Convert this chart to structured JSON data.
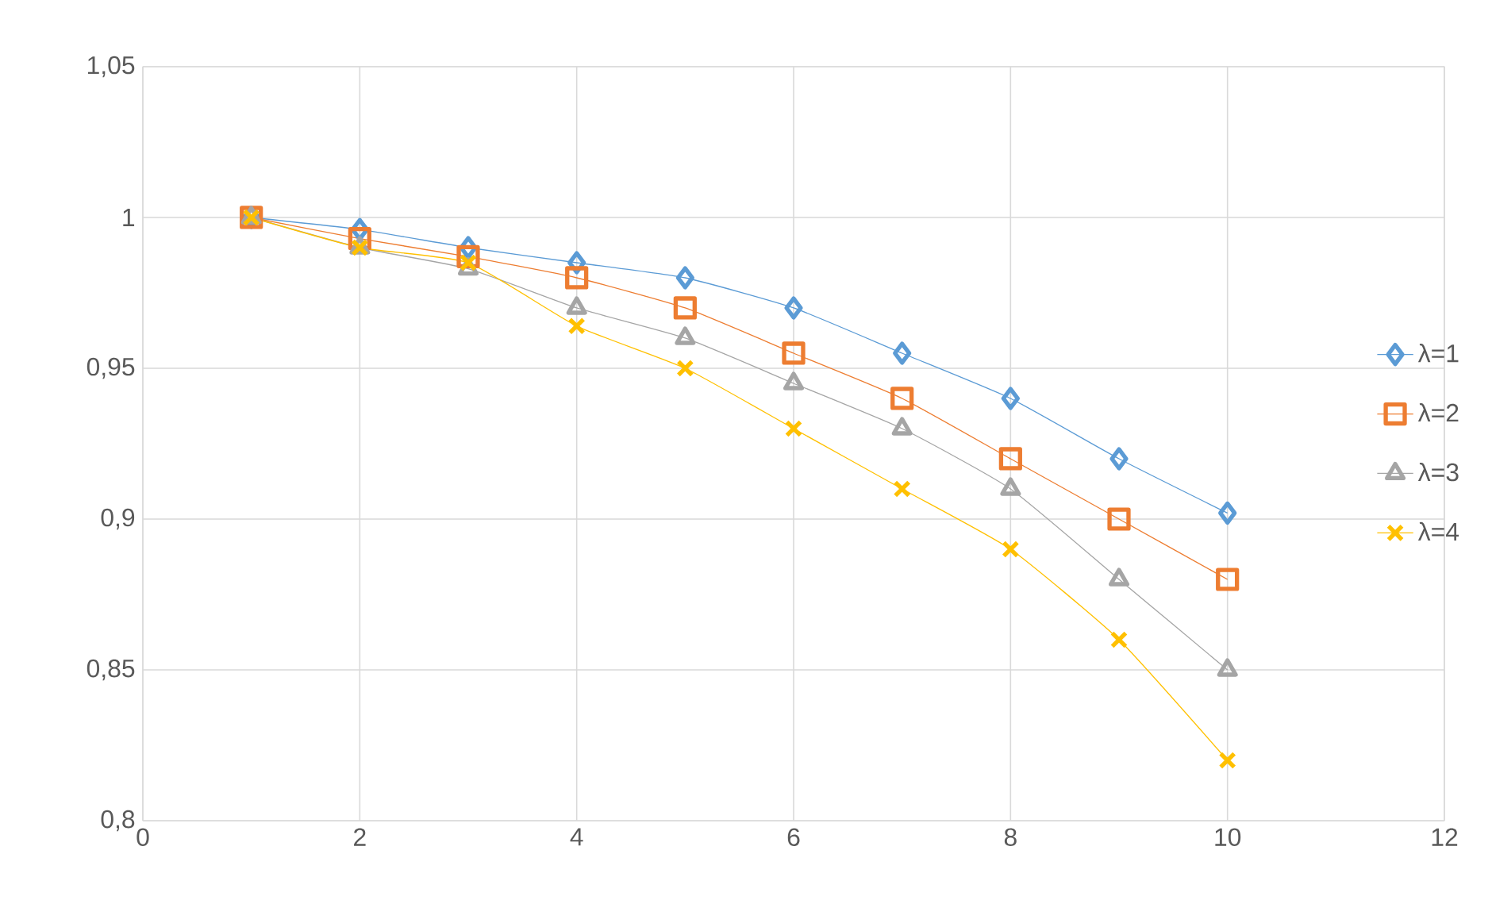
{
  "chart_data": {
    "type": "line",
    "x": [
      1,
      2,
      3,
      4,
      5,
      6,
      7,
      8,
      9,
      10
    ],
    "series": [
      {
        "name": "λ=1",
        "color": "#5b9bd5",
        "marker": "diamond",
        "values": [
          1.0,
          0.996,
          0.99,
          0.985,
          0.98,
          0.97,
          0.955,
          0.94,
          0.92,
          0.902
        ]
      },
      {
        "name": "λ=2",
        "color": "#ed7d31",
        "marker": "square",
        "values": [
          1.0,
          0.993,
          0.987,
          0.98,
          0.97,
          0.955,
          0.94,
          0.92,
          0.9,
          0.88
        ]
      },
      {
        "name": "λ=3",
        "color": "#a5a5a5",
        "marker": "triangle",
        "values": [
          1.0,
          0.99,
          0.983,
          0.97,
          0.96,
          0.945,
          0.93,
          0.91,
          0.88,
          0.85
        ]
      },
      {
        "name": "λ=4",
        "color": "#ffc000",
        "marker": "cross",
        "values": [
          1.0,
          0.99,
          0.985,
          0.964,
          0.95,
          0.93,
          0.91,
          0.89,
          0.86,
          0.82
        ]
      }
    ],
    "xlim": [
      0,
      12
    ],
    "xticks": [
      0,
      2,
      4,
      6,
      8,
      10,
      12
    ],
    "ylim": [
      0.8,
      1.05
    ],
    "yticks": [
      {
        "value": 0.8,
        "label": "0,8"
      },
      {
        "value": 0.85,
        "label": "0,85"
      },
      {
        "value": 0.9,
        "label": "0,9"
      },
      {
        "value": 0.95,
        "label": "0,95"
      },
      {
        "value": 1,
        "label": "1"
      },
      {
        "value": 1.05,
        "label": "1,05"
      }
    ],
    "grid": true,
    "legend": "right",
    "line_style": "solid"
  }
}
